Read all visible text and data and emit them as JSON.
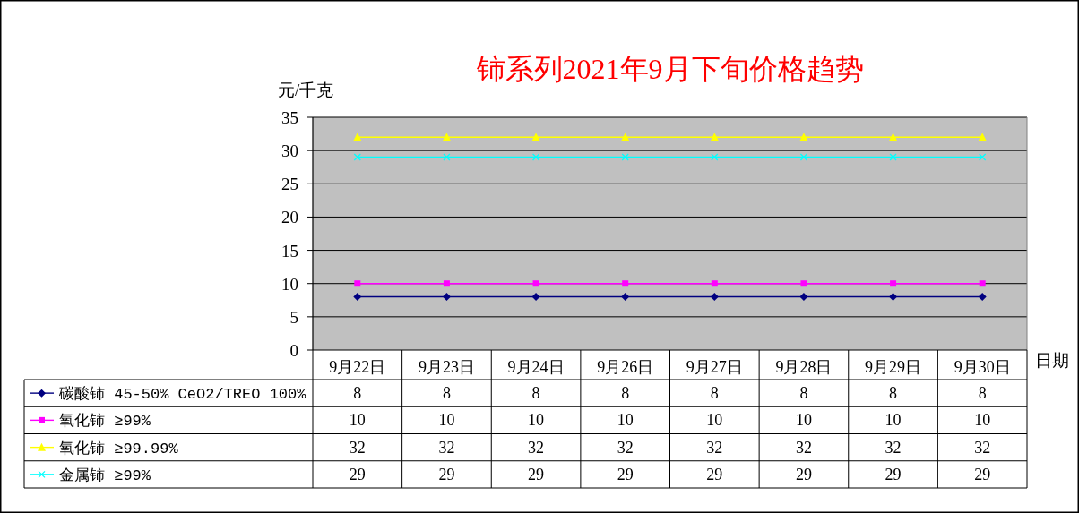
{
  "chart_data": {
    "type": "line",
    "title": "铈系列2021年9月下旬价格趋势",
    "ylabel": "元/千克",
    "xlabel": "日期",
    "categories": [
      "9月22日",
      "9月23日",
      "9月24日",
      "9月26日",
      "9月27日",
      "9月28日",
      "9月29日",
      "9月30日"
    ],
    "series": [
      {
        "name": "碳酸铈 45-50% CeO2/TREO 100%",
        "color": "#000080",
        "marker": "diamond",
        "values": [
          8,
          8,
          8,
          8,
          8,
          8,
          8,
          8
        ]
      },
      {
        "name": "氧化铈 ≥99%",
        "color": "#ff00ff",
        "marker": "square",
        "values": [
          10,
          10,
          10,
          10,
          10,
          10,
          10,
          10
        ]
      },
      {
        "name": "氧化铈 ≥99.99%",
        "color": "#ffff00",
        "marker": "triangle",
        "values": [
          32,
          32,
          32,
          32,
          32,
          32,
          32,
          32
        ]
      },
      {
        "name": "金属铈 ≥99%",
        "color": "#00ffff",
        "marker": "cross",
        "values": [
          29,
          29,
          29,
          29,
          29,
          29,
          29,
          29
        ]
      }
    ],
    "ylim": [
      0,
      35
    ],
    "yticks": [
      0,
      5,
      10,
      15,
      20,
      25,
      30,
      35
    ],
    "grid": "y",
    "legend": "bottom",
    "data_labels": true,
    "line_style": "solid"
  }
}
